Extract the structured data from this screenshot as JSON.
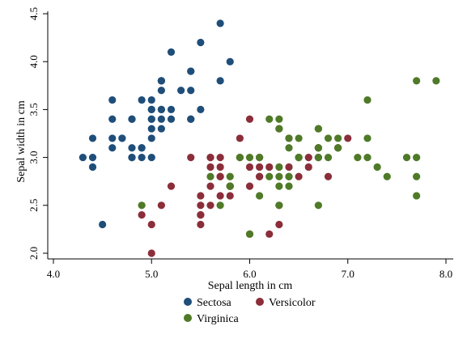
{
  "chart_data": {
    "type": "scatter",
    "title": "",
    "xlabel": "Sepal length in cm",
    "ylabel": "Sepal width in cm",
    "xlim": [
      4.0,
      8.0
    ],
    "ylim": [
      2.0,
      4.5
    ],
    "xticks": [
      "4.0",
      "5.0",
      "6.0",
      "7.0",
      "8.0"
    ],
    "yticks": [
      "2.0",
      "2.5",
      "3.0",
      "3.5",
      "4.0",
      "4.5"
    ],
    "grid": false,
    "legend_position": "bottom",
    "series": [
      {
        "name": "Sectosa",
        "color": "#1f4e79",
        "points": [
          [
            5.1,
            3.5
          ],
          [
            4.9,
            3.0
          ],
          [
            4.7,
            3.2
          ],
          [
            4.6,
            3.1
          ],
          [
            5.0,
            3.6
          ],
          [
            5.4,
            3.9
          ],
          [
            4.6,
            3.4
          ],
          [
            5.0,
            3.4
          ],
          [
            4.4,
            2.9
          ],
          [
            4.9,
            3.1
          ],
          [
            5.4,
            3.7
          ],
          [
            4.8,
            3.4
          ],
          [
            4.8,
            3.0
          ],
          [
            4.3,
            3.0
          ],
          [
            5.8,
            4.0
          ],
          [
            5.7,
            4.4
          ],
          [
            5.4,
            3.9
          ],
          [
            5.1,
            3.5
          ],
          [
            5.7,
            3.8
          ],
          [
            5.1,
            3.8
          ],
          [
            5.4,
            3.4
          ],
          [
            5.1,
            3.7
          ],
          [
            4.6,
            3.6
          ],
          [
            5.1,
            3.3
          ],
          [
            4.8,
            3.4
          ],
          [
            5.0,
            3.0
          ],
          [
            5.0,
            3.4
          ],
          [
            5.2,
            3.5
          ],
          [
            5.2,
            3.4
          ],
          [
            4.7,
            3.2
          ],
          [
            4.8,
            3.1
          ],
          [
            5.4,
            3.4
          ],
          [
            5.2,
            4.1
          ],
          [
            5.5,
            4.2
          ],
          [
            4.9,
            3.1
          ],
          [
            5.0,
            3.2
          ],
          [
            5.5,
            3.5
          ],
          [
            4.9,
            3.6
          ],
          [
            4.4,
            3.0
          ],
          [
            5.1,
            3.4
          ],
          [
            5.0,
            3.5
          ],
          [
            4.5,
            2.3
          ],
          [
            4.4,
            3.2
          ],
          [
            5.0,
            3.5
          ],
          [
            5.1,
            3.8
          ],
          [
            4.8,
            3.0
          ],
          [
            5.1,
            3.8
          ],
          [
            4.6,
            3.2
          ],
          [
            5.3,
            3.7
          ],
          [
            5.0,
            3.3
          ]
        ]
      },
      {
        "name": "Versicolor",
        "color": "#8b2e3a",
        "points": [
          [
            7.0,
            3.2
          ],
          [
            6.4,
            3.2
          ],
          [
            6.9,
            3.1
          ],
          [
            5.5,
            2.3
          ],
          [
            6.5,
            2.8
          ],
          [
            5.7,
            2.8
          ],
          [
            6.3,
            3.3
          ],
          [
            4.9,
            2.4
          ],
          [
            6.6,
            2.9
          ],
          [
            5.2,
            2.7
          ],
          [
            5.0,
            2.0
          ],
          [
            5.9,
            3.0
          ],
          [
            6.0,
            2.2
          ],
          [
            6.1,
            2.9
          ],
          [
            5.6,
            2.9
          ],
          [
            6.7,
            3.1
          ],
          [
            5.6,
            3.0
          ],
          [
            5.8,
            2.7
          ],
          [
            6.2,
            2.2
          ],
          [
            5.6,
            2.5
          ],
          [
            5.9,
            3.2
          ],
          [
            6.1,
            2.8
          ],
          [
            6.3,
            2.5
          ],
          [
            6.1,
            2.8
          ],
          [
            6.4,
            2.9
          ],
          [
            6.6,
            3.0
          ],
          [
            6.8,
            2.8
          ],
          [
            6.7,
            3.0
          ],
          [
            6.0,
            2.9
          ],
          [
            5.7,
            2.6
          ],
          [
            5.5,
            2.4
          ],
          [
            5.5,
            2.4
          ],
          [
            5.8,
            2.7
          ],
          [
            6.0,
            2.7
          ],
          [
            5.4,
            3.0
          ],
          [
            6.0,
            3.4
          ],
          [
            6.7,
            3.1
          ],
          [
            6.3,
            2.3
          ],
          [
            5.6,
            3.0
          ],
          [
            5.5,
            2.5
          ],
          [
            5.5,
            2.6
          ],
          [
            6.1,
            3.0
          ],
          [
            5.8,
            2.6
          ],
          [
            5.0,
            2.3
          ],
          [
            5.6,
            2.7
          ],
          [
            5.7,
            3.0
          ],
          [
            5.7,
            2.9
          ],
          [
            6.2,
            2.9
          ],
          [
            5.1,
            2.5
          ],
          [
            5.7,
            2.8
          ]
        ]
      },
      {
        "name": "Virginica",
        "color": "#4f7a28",
        "points": [
          [
            6.3,
            3.3
          ],
          [
            5.8,
            2.7
          ],
          [
            7.1,
            3.0
          ],
          [
            6.3,
            2.9
          ],
          [
            6.5,
            3.0
          ],
          [
            7.6,
            3.0
          ],
          [
            4.9,
            2.5
          ],
          [
            7.3,
            2.9
          ],
          [
            6.7,
            2.5
          ],
          [
            7.2,
            3.6
          ],
          [
            6.5,
            3.2
          ],
          [
            6.4,
            2.7
          ],
          [
            6.8,
            3.0
          ],
          [
            5.7,
            2.5
          ],
          [
            5.8,
            2.8
          ],
          [
            6.4,
            3.2
          ],
          [
            6.5,
            3.0
          ],
          [
            7.7,
            3.8
          ],
          [
            7.7,
            2.6
          ],
          [
            6.0,
            2.2
          ],
          [
            6.9,
            3.2
          ],
          [
            5.6,
            2.8
          ],
          [
            7.7,
            2.8
          ],
          [
            6.3,
            2.7
          ],
          [
            6.7,
            3.3
          ],
          [
            7.2,
            3.2
          ],
          [
            6.2,
            2.8
          ],
          [
            6.1,
            3.0
          ],
          [
            6.4,
            2.8
          ],
          [
            7.2,
            3.0
          ],
          [
            7.4,
            2.8
          ],
          [
            7.9,
            3.8
          ],
          [
            6.4,
            2.8
          ],
          [
            6.3,
            2.8
          ],
          [
            6.1,
            2.6
          ],
          [
            7.7,
            3.0
          ],
          [
            6.3,
            3.4
          ],
          [
            6.4,
            3.1
          ],
          [
            6.0,
            3.0
          ],
          [
            6.9,
            3.1
          ],
          [
            6.7,
            3.1
          ],
          [
            6.9,
            3.1
          ],
          [
            5.8,
            2.7
          ],
          [
            6.8,
            3.2
          ],
          [
            6.7,
            3.3
          ],
          [
            6.7,
            3.0
          ],
          [
            6.3,
            2.5
          ],
          [
            6.5,
            3.0
          ],
          [
            6.2,
            3.4
          ],
          [
            5.9,
            3.0
          ]
        ]
      }
    ]
  }
}
